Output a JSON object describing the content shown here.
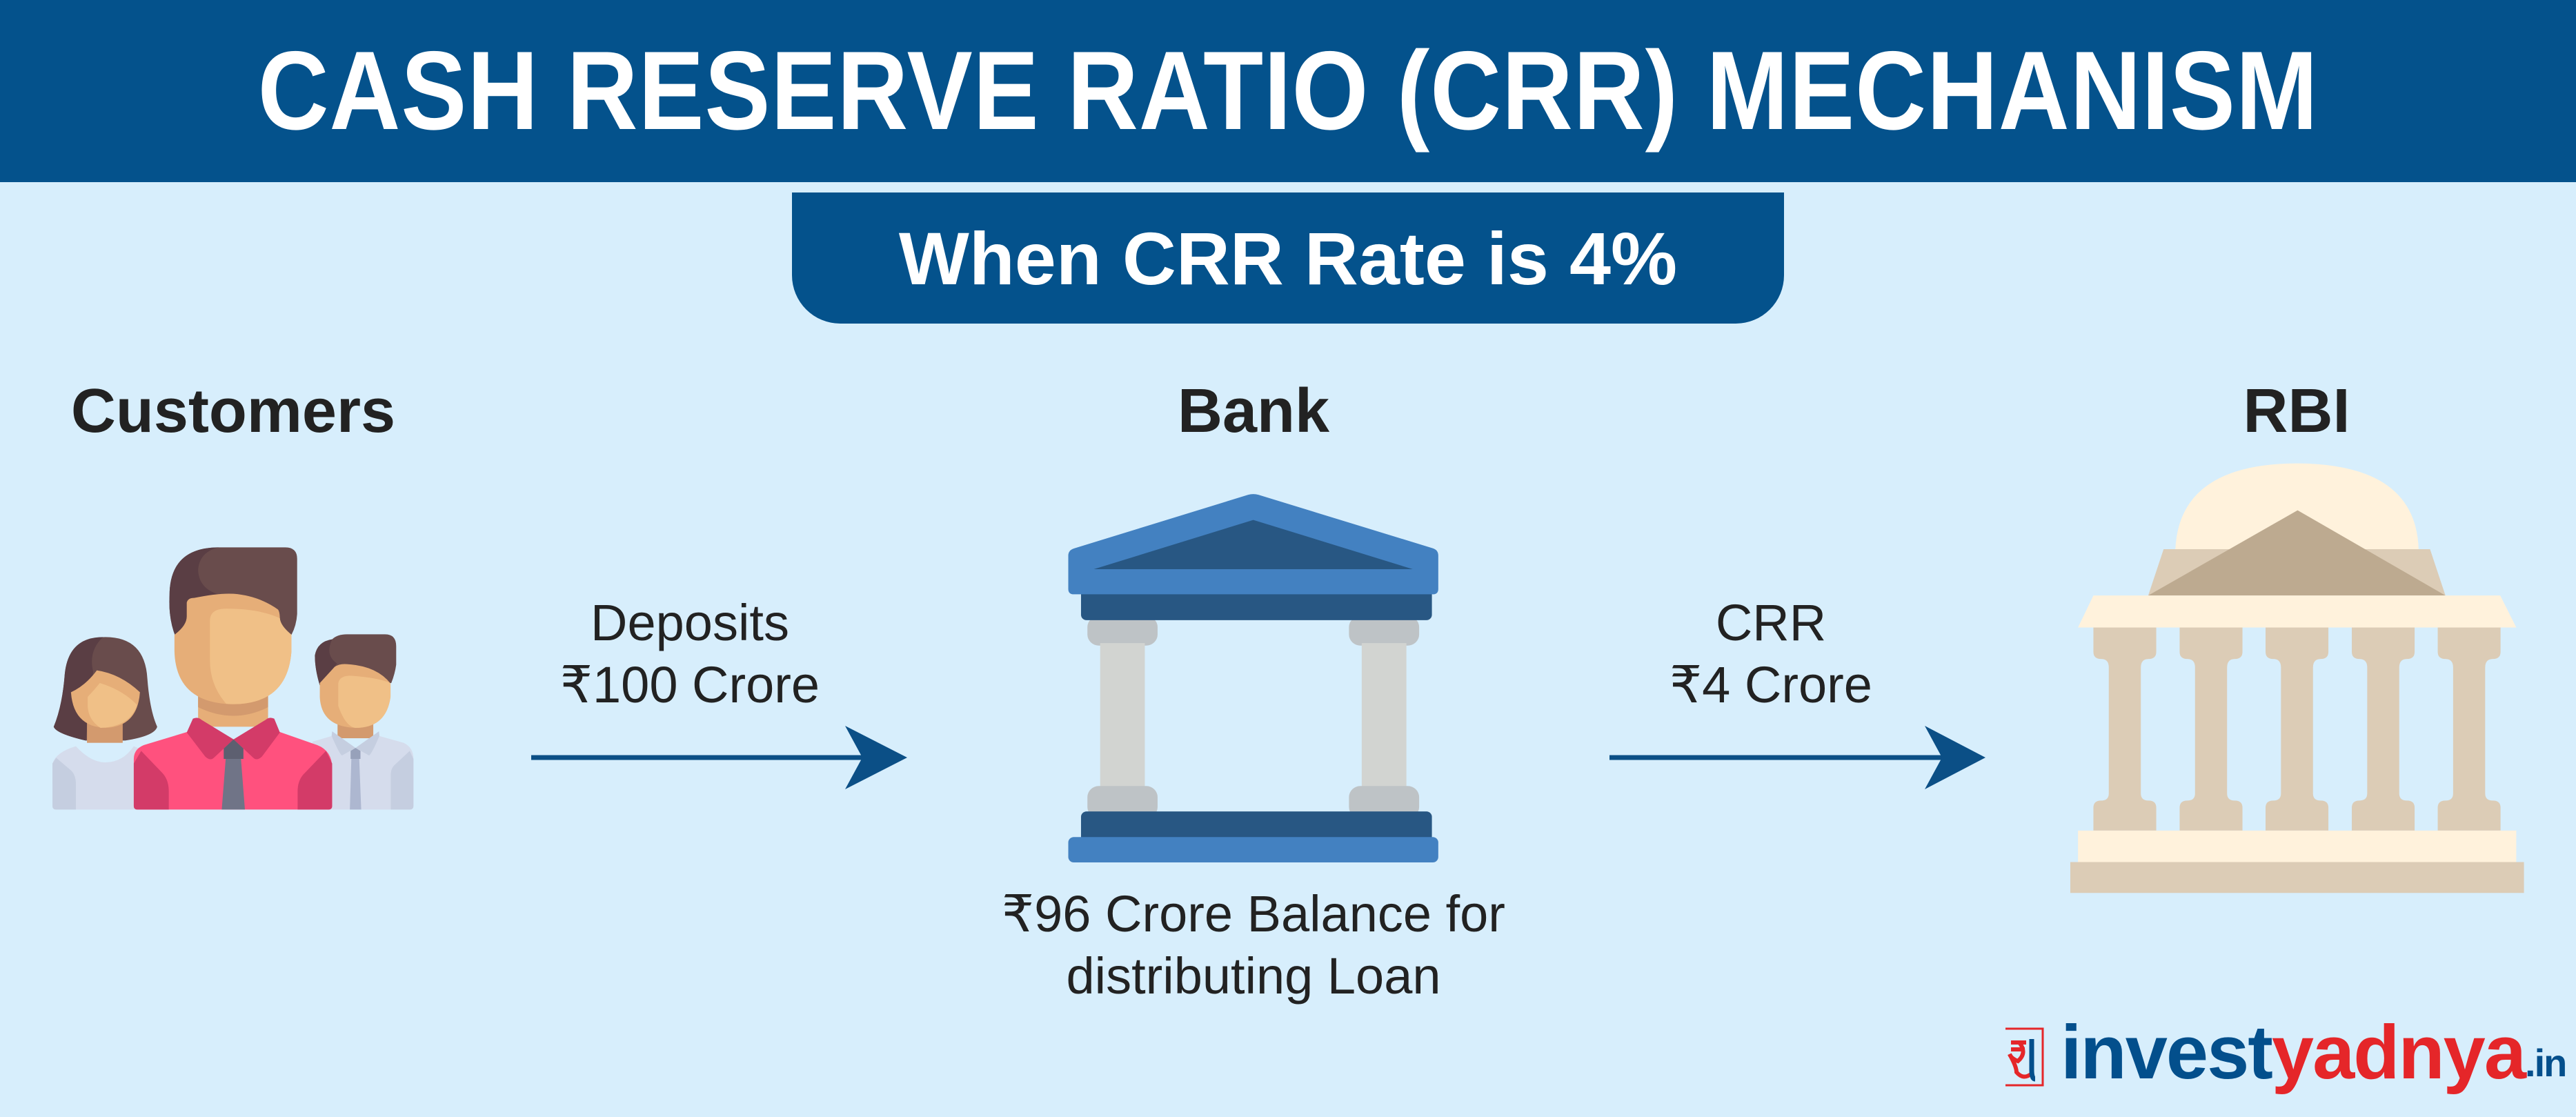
{
  "header": {
    "title": "CASH RESERVE RATIO (CRR) MECHANISM"
  },
  "subtitle": "When CRR Rate is 4%",
  "nodes": {
    "customers": {
      "label": "Customers",
      "icon": "people-icon"
    },
    "bank": {
      "label": "Bank",
      "icon": "bank-building-icon",
      "caption_line1": "₹96 Crore Balance for",
      "caption_line2": "distributing Loan"
    },
    "rbi": {
      "label": "RBI",
      "icon": "rbi-building-icon"
    }
  },
  "flows": {
    "deposits": {
      "line1": "Deposits",
      "line2": "₹100 Crore"
    },
    "crr": {
      "line1": "CRR",
      "line2": "₹4 Crore"
    }
  },
  "logo": {
    "part1": "invest",
    "part2": "yadnya",
    "part3": ".in"
  },
  "colors": {
    "header": "#04528c",
    "background": "#d7eefc",
    "arrow": "#0b4f86",
    "logo_blue": "#034f8c",
    "logo_red": "#e52629"
  }
}
